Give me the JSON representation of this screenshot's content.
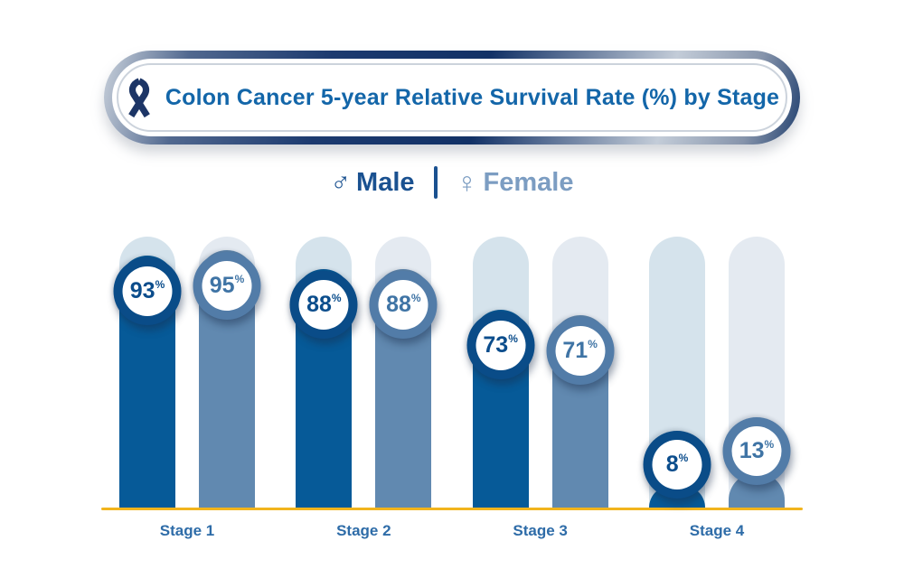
{
  "header": {
    "title": "Colon Cancer 5-year Relative Survival Rate (%) by Stage",
    "ribbon_icon": "awareness-ribbon"
  },
  "legend": {
    "male_symbol": "♂",
    "male_label": "Male",
    "separator": "|",
    "female_symbol": "♀",
    "female_label": "Female"
  },
  "chart_data": {
    "type": "bar",
    "title": "Colon Cancer 5-year Relative Survival Rate (%) by Stage",
    "categories": [
      "Stage 1",
      "Stage 2",
      "Stage 3",
      "Stage 4"
    ],
    "series": [
      {
        "name": "Male",
        "values": [
          93,
          88,
          73,
          8
        ]
      },
      {
        "name": "Female",
        "values": [
          95,
          88,
          71,
          13
        ]
      }
    ],
    "unit": "%",
    "ylim": [
      0,
      100
    ],
    "grid": false,
    "legend_position": "top",
    "value_labels": "circular badges at bar tops"
  },
  "colors": {
    "male": "#065a98",
    "female": "#6189b0",
    "male_track": "#d5e3ec",
    "female_track": "#e4eaf1",
    "male_ring": "#0a4c88",
    "female_ring": "#527ca8",
    "male_value_text": "#0b4d8c",
    "female_value_text": "#3f74a5",
    "axis_line": "#f2b41d",
    "title_text": "#1366a9",
    "legend_male": "#1a5190",
    "legend_female": "#7c9dc2",
    "stage_label": "#2e6ca8",
    "ribbon": "#1c3566"
  }
}
